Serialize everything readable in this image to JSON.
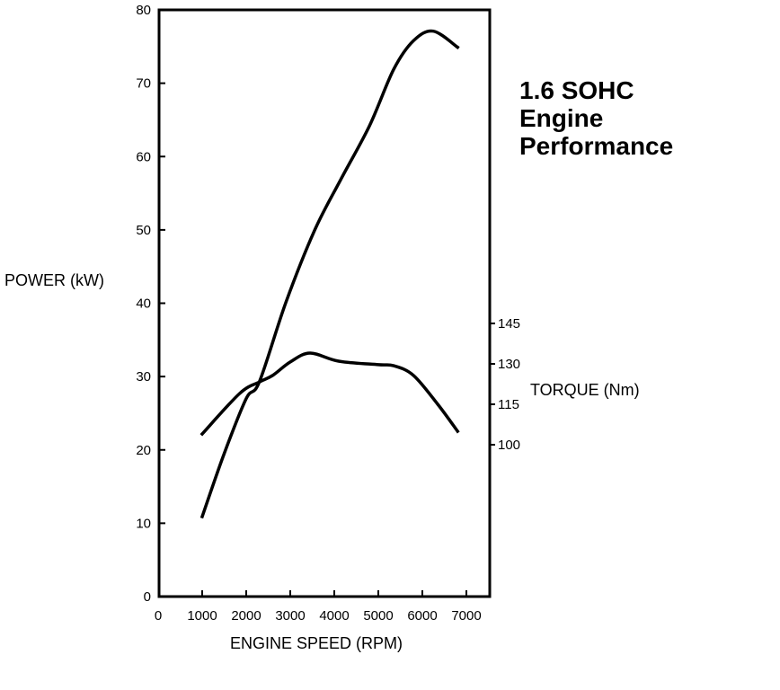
{
  "chart_data": {
    "type": "line",
    "title": [
      "1.6 SOHC",
      "Engine",
      "Performance"
    ],
    "xlabel": "ENGINE SPEED (RPM)",
    "ylabel": "POWER (kW)",
    "y2label": "TORQUE (Nm)",
    "xlim": [
      0,
      7500
    ],
    "ylim": [
      0,
      80
    ],
    "y2ticks": [
      100,
      115,
      130,
      145
    ],
    "xticks": [
      0,
      1000,
      2000,
      3000,
      4000,
      5000,
      6000,
      7000
    ],
    "yticks": [
      0,
      10,
      20,
      30,
      40,
      50,
      60,
      70,
      80
    ],
    "grid": false,
    "line_color": "#000000",
    "series": [
      {
        "axis": "left",
        "x": [
          1000,
          1500,
          2000,
          2300,
          2900,
          3550,
          4150,
          4800,
          5350,
          5800,
          6250,
          6800
        ],
        "values": [
          10.9,
          19.5,
          27.0,
          29.3,
          40.1,
          49.9,
          56.9,
          64.2,
          71.9,
          75.8,
          77.1,
          74.9
        ]
      },
      {
        "axis": "right",
        "x": [
          1000,
          1850,
          2300,
          2600,
          3000,
          3450,
          4100,
          5000,
          5350,
          5800,
          6350,
          6800
        ],
        "values": [
          104,
          119,
          123.3,
          125.7,
          130.7,
          134,
          131,
          129.7,
          129.3,
          125.7,
          115,
          105
        ]
      }
    ]
  }
}
